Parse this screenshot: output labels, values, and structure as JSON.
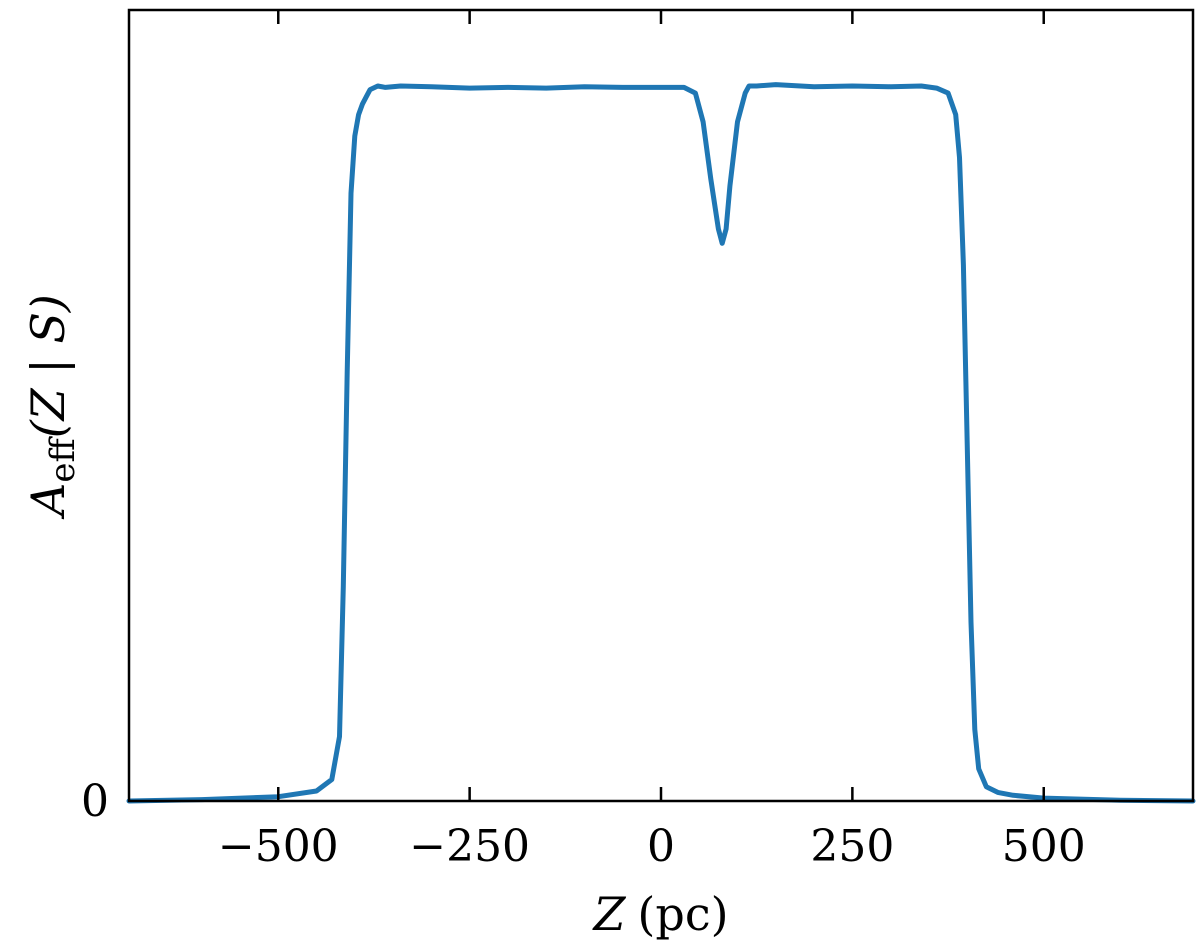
{
  "chart_data": {
    "type": "line",
    "xlabel_var": "Z",
    "xlabel_unit": "(pc)",
    "ylabel_main": "A",
    "ylabel_sub": "eff",
    "ylabel_args": "(Z | S)",
    "xlim": [
      -695,
      695
    ],
    "ylim": [
      0,
      1.0
    ],
    "x_ticks": [
      -500,
      -250,
      0,
      250,
      500
    ],
    "x_tick_labels": [
      "−500",
      "−250",
      "0",
      "250",
      "500"
    ],
    "y_ticks": [
      0
    ],
    "y_tick_labels": [
      "0"
    ],
    "grid": false,
    "series": [
      {
        "color": "#1f77b4",
        "x": [
          -695,
          -600,
          -500,
          -450,
          -430,
          -420,
          -415,
          -410,
          -405,
          -400,
          -395,
          -390,
          -385,
          -380,
          -370,
          -360,
          -340,
          -300,
          -250,
          -200,
          -150,
          -100,
          -50,
          0,
          30,
          45,
          55,
          65,
          75,
          80,
          85,
          90,
          100,
          110,
          115,
          125,
          150,
          200,
          250,
          300,
          340,
          360,
          375,
          385,
          390,
          395,
          400,
          405,
          410,
          415,
          425,
          440,
          460,
          500,
          600,
          695
        ],
        "y": [
          0.0,
          0.002,
          0.006,
          0.014,
          0.03,
          0.09,
          0.3,
          0.6,
          0.85,
          0.93,
          0.96,
          0.975,
          0.985,
          0.995,
          1.0,
          0.998,
          1.0,
          0.999,
          0.997,
          0.998,
          0.997,
          0.999,
          0.998,
          0.998,
          0.998,
          0.99,
          0.95,
          0.87,
          0.8,
          0.78,
          0.8,
          0.86,
          0.95,
          0.99,
          1.0,
          1.0,
          1.002,
          0.999,
          1.0,
          0.999,
          1.0,
          0.997,
          0.99,
          0.96,
          0.9,
          0.75,
          0.5,
          0.25,
          0.1,
          0.045,
          0.02,
          0.012,
          0.008,
          0.004,
          0.001,
          0.0
        ]
      }
    ]
  }
}
